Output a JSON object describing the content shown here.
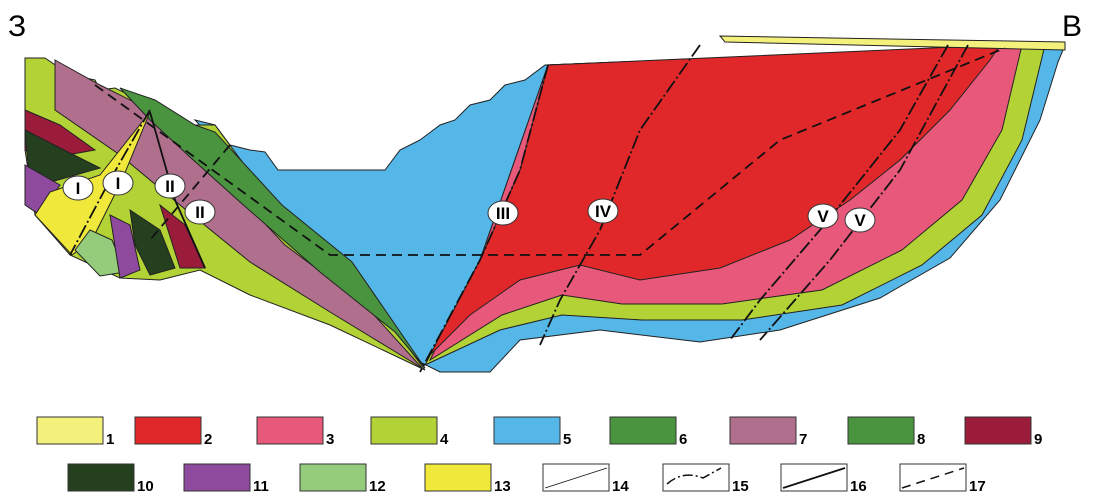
{
  "header": {
    "left_label": "З",
    "right_label": "В"
  },
  "faults": [
    {
      "label": "I"
    },
    {
      "label": "I"
    },
    {
      "label": "II"
    },
    {
      "label": "II"
    },
    {
      "label": "III"
    },
    {
      "label": "IV"
    },
    {
      "label": "V"
    },
    {
      "label": "V"
    }
  ],
  "legend": [
    {
      "label": "1",
      "color": "#f4f07c"
    },
    {
      "label": "2",
      "color": "#e0282a"
    },
    {
      "label": "3",
      "color": "#e8587a"
    },
    {
      "label": "4",
      "color": "#b3d235"
    },
    {
      "label": "5",
      "color": "#55b6e8"
    },
    {
      "label": "6",
      "color": "#4a9440"
    },
    {
      "label": "7",
      "color": "#b06f8c"
    },
    {
      "label": "8",
      "color": "#4a9440"
    },
    {
      "label": "9",
      "color": "#9b1c3a"
    },
    {
      "label": "10",
      "color": "#24401f"
    },
    {
      "label": "11",
      "color": "#8e4a9c"
    },
    {
      "label": "12",
      "color": "#94cc7c"
    },
    {
      "label": "13",
      "color": "#f0e83a"
    },
    {
      "label": "14"
    },
    {
      "label": "15"
    },
    {
      "label": "16"
    },
    {
      "label": "17"
    }
  ]
}
